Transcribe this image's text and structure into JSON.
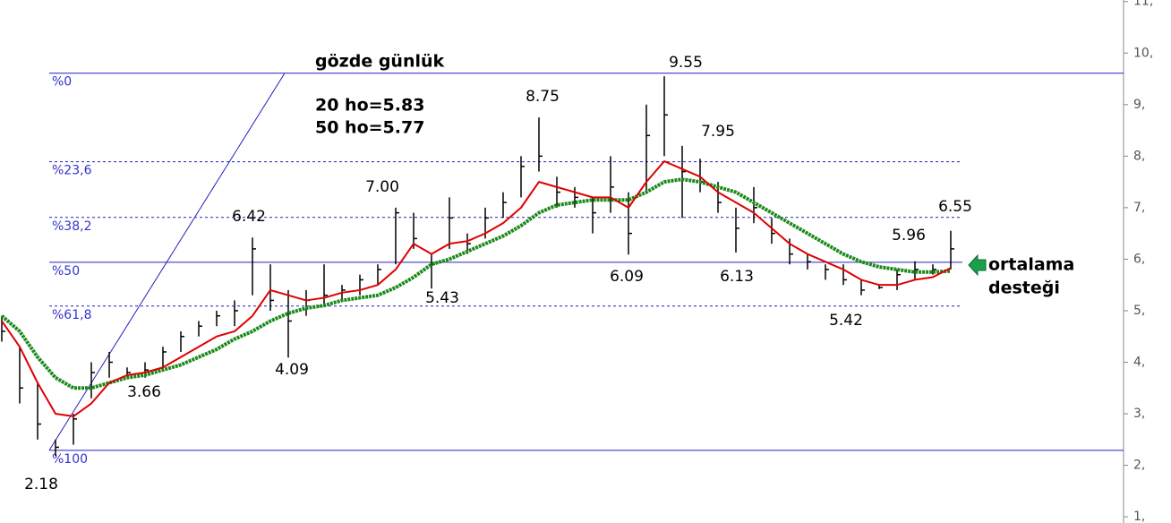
{
  "chart_data": {
    "type": "ohlc",
    "title": "gözde günlük",
    "subtitle": [
      "20 ho=5.83",
      "50 ho=5.77"
    ],
    "note": [
      "ortalama",
      "desteği"
    ],
    "annotations": [
      "9.55",
      "8.75",
      "7.95",
      "7.00",
      "6.42",
      "6.55",
      "5.96",
      "6.09",
      "6.13",
      "5.43",
      "5.42",
      "4.09",
      "3.66",
      "2.18"
    ],
    "ohlc": {
      "high": [
        4.9,
        4.3,
        3.6,
        2.5,
        3.0,
        4.0,
        4.2,
        3.9,
        4.0,
        4.3,
        4.6,
        4.8,
        5.0,
        5.2,
        6.42,
        5.9,
        5.4,
        5.4,
        5.9,
        5.5,
        5.7,
        5.9,
        7.0,
        6.9,
        6.1,
        7.2,
        6.5,
        7.0,
        7.3,
        8.0,
        8.75,
        7.6,
        7.4,
        7.2,
        8.0,
        7.3,
        9.0,
        9.55,
        8.2,
        7.95,
        7.5,
        7.0,
        7.4,
        6.8,
        6.4,
        6.1,
        5.9,
        5.9,
        5.6,
        5.5,
        5.8,
        5.96,
        5.9,
        6.55
      ],
      "low": [
        4.4,
        3.2,
        2.5,
        2.18,
        2.4,
        3.3,
        3.7,
        3.7,
        3.7,
        3.9,
        4.2,
        4.5,
        4.7,
        4.7,
        5.3,
        5.0,
        4.09,
        4.9,
        5.1,
        5.2,
        5.3,
        5.5,
        5.9,
        6.2,
        5.43,
        6.2,
        6.1,
        6.4,
        6.8,
        7.2,
        7.7,
        7.0,
        7.0,
        6.5,
        6.9,
        6.09,
        7.3,
        8.0,
        6.8,
        7.3,
        6.9,
        6.13,
        6.7,
        6.3,
        5.9,
        5.8,
        5.6,
        5.5,
        5.3,
        5.42,
        5.4,
        5.6,
        5.7,
        5.8
      ],
      "close": [
        4.6,
        3.5,
        2.8,
        2.35,
        2.9,
        3.8,
        4.0,
        3.8,
        3.85,
        4.2,
        4.5,
        4.7,
        4.9,
        5.0,
        6.2,
        5.2,
        4.8,
        5.2,
        5.3,
        5.4,
        5.6,
        5.8,
        6.9,
        6.4,
        5.9,
        6.8,
        6.3,
        6.8,
        7.1,
        7.8,
        8.0,
        7.3,
        7.2,
        6.9,
        7.4,
        6.5,
        8.4,
        8.8,
        7.7,
        7.5,
        7.1,
        6.6,
        7.0,
        6.5,
        6.1,
        5.95,
        5.8,
        5.6,
        5.4,
        5.45,
        5.7,
        5.8,
        5.8,
        6.2
      ],
      "color": "#000000"
    },
    "moving_averages": [
      {
        "color": "#e00000",
        "width": 2,
        "values": [
          4.8,
          4.3,
          3.6,
          3.0,
          2.95,
          3.2,
          3.6,
          3.75,
          3.8,
          3.9,
          4.1,
          4.3,
          4.5,
          4.6,
          4.9,
          5.4,
          5.3,
          5.2,
          5.25,
          5.35,
          5.4,
          5.5,
          5.8,
          6.3,
          6.1,
          6.3,
          6.35,
          6.5,
          6.7,
          7.0,
          7.5,
          7.4,
          7.3,
          7.2,
          7.2,
          7.0,
          7.5,
          7.9,
          7.75,
          7.6,
          7.3,
          7.1,
          6.9,
          6.6,
          6.3,
          6.1,
          5.95,
          5.8,
          5.6,
          5.5,
          5.5,
          5.6,
          5.65,
          5.83
        ]
      },
      {
        "color": "#1a8a1a",
        "width": 4,
        "values": [
          4.9,
          4.6,
          4.1,
          3.7,
          3.5,
          3.5,
          3.6,
          3.7,
          3.75,
          3.85,
          3.95,
          4.1,
          4.25,
          4.45,
          4.6,
          4.8,
          4.95,
          5.05,
          5.1,
          5.2,
          5.25,
          5.3,
          5.45,
          5.65,
          5.9,
          6.0,
          6.15,
          6.3,
          6.45,
          6.65,
          6.9,
          7.05,
          7.1,
          7.15,
          7.15,
          7.15,
          7.3,
          7.5,
          7.55,
          7.5,
          7.4,
          7.3,
          7.1,
          6.9,
          6.7,
          6.5,
          6.3,
          6.1,
          5.95,
          5.85,
          5.8,
          5.75,
          5.75,
          5.77
        ]
      }
    ],
    "fib_levels": [
      {
        "label": "%0",
        "value": 9.61,
        "style": "solid"
      },
      {
        "label": "%23,6",
        "value": 7.89,
        "style": "dashed"
      },
      {
        "label": "%38,2",
        "value": 6.81,
        "style": "dashed"
      },
      {
        "label": "%50",
        "value": 5.94,
        "style": "solid"
      },
      {
        "label": "%61,8",
        "value": 5.09,
        "style": "dashed"
      },
      {
        "label": "%100",
        "value": 2.29,
        "style": "solid"
      }
    ],
    "fib_color": "#2020c0",
    "ylim": [
      0.88,
      11.03
    ],
    "yticks": [
      {
        "value": 11,
        "label": "11,"
      },
      {
        "value": 10,
        "label": "10,"
      },
      {
        "value": 9,
        "label": "9,"
      },
      {
        "value": 8,
        "label": "8,"
      },
      {
        "value": 7,
        "label": "7,"
      },
      {
        "value": 6,
        "label": "6,"
      },
      {
        "value": 5,
        "label": "5,"
      },
      {
        "value": 4,
        "label": "4,"
      },
      {
        "value": 3,
        "label": "3,"
      },
      {
        "value": 2,
        "label": "2,"
      },
      {
        "value": 1,
        "label": "1,"
      }
    ]
  }
}
